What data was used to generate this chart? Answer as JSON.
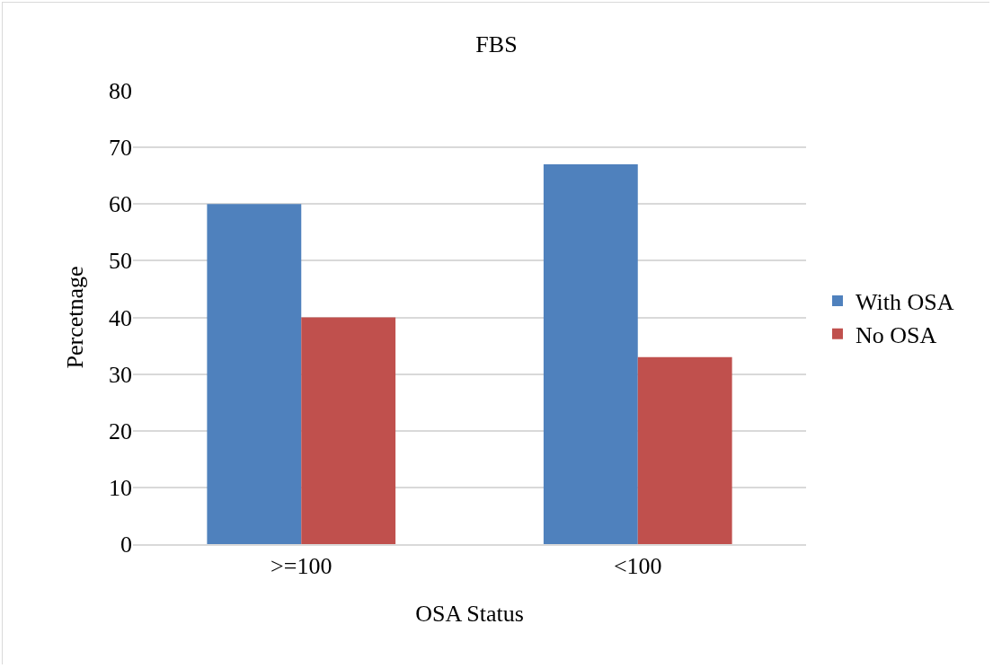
{
  "chart_data": {
    "type": "bar",
    "title": "FBS",
    "xlabel": "OSA Status",
    "ylabel": "Percetnage",
    "categories": [
      ">=100",
      "<100"
    ],
    "series": [
      {
        "name": "With OSA",
        "color": "#4f81bd",
        "values": [
          60,
          67
        ]
      },
      {
        "name": "No OSA",
        "color": "#c0504d",
        "values": [
          40,
          33
        ]
      }
    ],
    "ylim": [
      0,
      80
    ],
    "yticks": [
      0,
      10,
      20,
      30,
      40,
      50,
      60,
      70,
      80
    ],
    "grid": "y",
    "legend": "right"
  }
}
